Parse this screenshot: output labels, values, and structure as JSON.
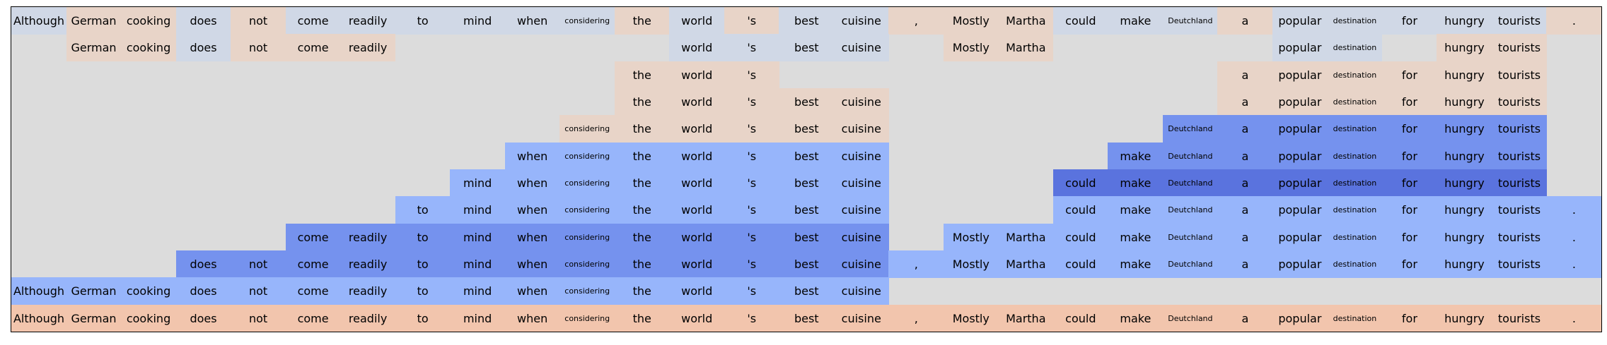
{
  "chart_data": {
    "type": "heatmap",
    "title": "",
    "xlabel": "",
    "ylabel": "",
    "tokens": [
      "Although",
      "German",
      "cooking",
      "does",
      "not",
      "come",
      "readily",
      "to",
      "mind",
      "when",
      "considering",
      "the",
      "world",
      "'s",
      "best",
      "cuisine",
      ",",
      "Mostly",
      "Martha",
      "could",
      "make",
      "Deutchland",
      "a",
      "popular",
      "destination",
      "for",
      "hungry",
      "tourists",
      "."
    ],
    "colors": {
      "background": "#dcdcdc",
      "n3": "#5a73de",
      "n2": "#7592ee",
      "n1": "#97b5fb",
      "n0": "#d0d8e6",
      "p1": "#e8d4c8",
      "p2": "#f2c5ad"
    },
    "rows": [
      {
        "cells": [
          "n0",
          "p1",
          "p1",
          "n0",
          "p1",
          "n0",
          "n0",
          "n0",
          "n0",
          "n0",
          "n0",
          "p1",
          "n0",
          "p1",
          "n0",
          "n0",
          "p1",
          "p1",
          "p1",
          "n0",
          "n0",
          "n0",
          "p1",
          "n0",
          "n0",
          "n0",
          "n0",
          "n0",
          "p1"
        ]
      },
      {
        "cells": [
          null,
          "p1",
          "p1",
          "n0",
          "p1",
          "p1",
          "p1",
          null,
          null,
          null,
          null,
          null,
          "n0",
          "n0",
          "n0",
          "n0",
          null,
          "p1",
          "p1",
          null,
          null,
          null,
          null,
          "n0",
          "n0",
          null,
          "p1",
          "p1",
          null
        ]
      },
      {
        "cells": [
          null,
          null,
          null,
          null,
          null,
          null,
          null,
          null,
          null,
          null,
          null,
          "p1",
          "p1",
          "p1",
          null,
          null,
          null,
          null,
          null,
          null,
          null,
          null,
          "p1",
          "p1",
          "p1",
          "p1",
          "p1",
          "p1",
          null
        ]
      },
      {
        "cells": [
          null,
          null,
          null,
          null,
          null,
          null,
          null,
          null,
          null,
          null,
          null,
          "p1",
          "p1",
          "p1",
          "p1",
          "p1",
          null,
          null,
          null,
          null,
          null,
          null,
          "p1",
          "p1",
          "p1",
          "p1",
          "p1",
          "p1",
          null
        ]
      },
      {
        "cells": [
          null,
          null,
          null,
          null,
          null,
          null,
          null,
          null,
          null,
          null,
          "p1",
          "p1",
          "p1",
          "p1",
          "p1",
          "p1",
          null,
          null,
          null,
          null,
          null,
          "n2",
          "n2",
          "n2",
          "n2",
          "n2",
          "n2",
          "n2",
          null
        ]
      },
      {
        "cells": [
          null,
          null,
          null,
          null,
          null,
          null,
          null,
          null,
          null,
          "n1",
          "n1",
          "n1",
          "n1",
          "n1",
          "n1",
          "n1",
          null,
          null,
          null,
          null,
          "n2",
          "n2",
          "n2",
          "n2",
          "n2",
          "n2",
          "n2",
          "n2",
          null
        ]
      },
      {
        "cells": [
          null,
          null,
          null,
          null,
          null,
          null,
          null,
          null,
          "n1",
          "n1",
          "n1",
          "n1",
          "n1",
          "n1",
          "n1",
          "n1",
          null,
          null,
          null,
          "n3",
          "n3",
          "n3",
          "n3",
          "n3",
          "n3",
          "n3",
          "n3",
          "n3",
          null
        ]
      },
      {
        "cells": [
          null,
          null,
          null,
          null,
          null,
          null,
          null,
          "n1",
          "n1",
          "n1",
          "n1",
          "n1",
          "n1",
          "n1",
          "n1",
          "n1",
          null,
          null,
          null,
          "n1",
          "n1",
          "n1",
          "n1",
          "n1",
          "n1",
          "n1",
          "n1",
          "n1",
          "n1"
        ]
      },
      {
        "cells": [
          null,
          null,
          null,
          null,
          null,
          "n2",
          "n2",
          "n2",
          "n2",
          "n2",
          "n2",
          "n2",
          "n2",
          "n2",
          "n2",
          "n2",
          null,
          "n1",
          "n1",
          "n1",
          "n1",
          "n1",
          "n1",
          "n1",
          "n1",
          "n1",
          "n1",
          "n1",
          "n1"
        ]
      },
      {
        "cells": [
          null,
          null,
          null,
          "n2",
          "n2",
          "n2",
          "n2",
          "n2",
          "n2",
          "n2",
          "n2",
          "n2",
          "n2",
          "n2",
          "n2",
          "n2",
          "n1",
          "n1",
          "n1",
          "n1",
          "n1",
          "n1",
          "n1",
          "n1",
          "n1",
          "n1",
          "n1",
          "n1",
          "n1"
        ]
      },
      {
        "cells": [
          "n1",
          "n1",
          "n1",
          "n1",
          "n1",
          "n1",
          "n1",
          "n1",
          "n1",
          "n1",
          "n1",
          "n1",
          "n1",
          "n1",
          "n1",
          "n1",
          null,
          null,
          null,
          null,
          null,
          null,
          null,
          null,
          null,
          null,
          null,
          null,
          null
        ]
      },
      {
        "cells": [
          "p2",
          "p2",
          "p2",
          "p2",
          "p2",
          "p2",
          "p2",
          "p2",
          "p2",
          "p2",
          "p2",
          "p2",
          "p2",
          "p2",
          "p2",
          "p2",
          "p2",
          "p2",
          "p2",
          "p2",
          "p2",
          "p2",
          "p2",
          "p2",
          "p2",
          "p2",
          "p2",
          "p2",
          "p2"
        ]
      }
    ]
  }
}
